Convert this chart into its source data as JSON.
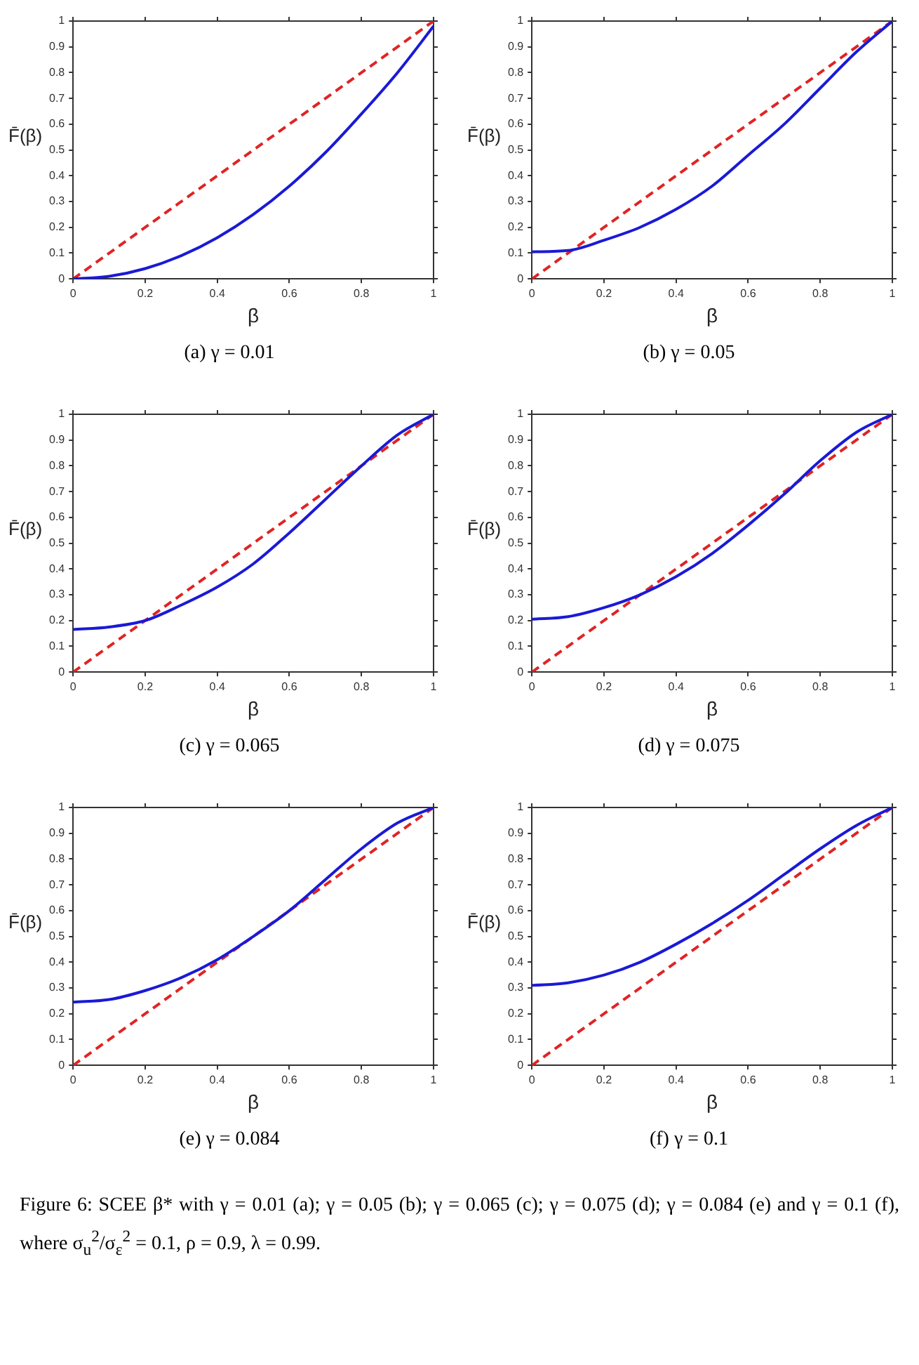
{
  "chart_data": [
    {
      "type": "line",
      "title": "(a) γ = 0.01",
      "xlabel": "β",
      "ylabel": "F̄(β)",
      "xlim": [
        0,
        1
      ],
      "ylim": [
        0,
        1
      ],
      "xticks": [
        0,
        0.2,
        0.4,
        0.6,
        0.8,
        1
      ],
      "yticks": [
        0,
        0.1,
        0.2,
        0.3,
        0.4,
        0.5,
        0.6,
        0.7,
        0.8,
        0.9,
        1
      ],
      "grid": false,
      "legend": false,
      "marker": "none",
      "series": [
        {
          "color": "#1a1ad6",
          "line_style": "solid",
          "x": [
            0,
            0.1,
            0.2,
            0.3,
            0.4,
            0.5,
            0.6,
            0.7,
            0.8,
            0.9,
            1
          ],
          "values": [
            0,
            0.01,
            0.04,
            0.09,
            0.16,
            0.25,
            0.36,
            0.49,
            0.64,
            0.8,
            0.98
          ]
        },
        {
          "color": "#e02424",
          "line_style": "dashed",
          "x": [
            0,
            1
          ],
          "values": [
            0,
            1
          ]
        }
      ]
    },
    {
      "type": "line",
      "title": "(b) γ = 0.05",
      "xlabel": "β",
      "ylabel": "F̄(β)",
      "xlim": [
        0,
        1
      ],
      "ylim": [
        0,
        1
      ],
      "xticks": [
        0,
        0.2,
        0.4,
        0.6,
        0.8,
        1
      ],
      "yticks": [
        0,
        0.1,
        0.2,
        0.3,
        0.4,
        0.5,
        0.6,
        0.7,
        0.8,
        0.9,
        1
      ],
      "grid": false,
      "legend": false,
      "marker": "none",
      "series": [
        {
          "color": "#1a1ad6",
          "line_style": "solid",
          "x": [
            0,
            0.1,
            0.2,
            0.3,
            0.4,
            0.5,
            0.6,
            0.7,
            0.8,
            0.9,
            1
          ],
          "values": [
            0.105,
            0.11,
            0.15,
            0.2,
            0.27,
            0.36,
            0.48,
            0.6,
            0.74,
            0.88,
            1
          ]
        },
        {
          "color": "#e02424",
          "line_style": "dashed",
          "x": [
            0,
            1
          ],
          "values": [
            0,
            1
          ]
        }
      ]
    },
    {
      "type": "line",
      "title": "(c) γ = 0.065",
      "xlabel": "β",
      "ylabel": "F̄(β)",
      "xlim": [
        0,
        1
      ],
      "ylim": [
        0,
        1
      ],
      "xticks": [
        0,
        0.2,
        0.4,
        0.6,
        0.8,
        1
      ],
      "yticks": [
        0,
        0.1,
        0.2,
        0.3,
        0.4,
        0.5,
        0.6,
        0.7,
        0.8,
        0.9,
        1
      ],
      "grid": false,
      "legend": false,
      "marker": "none",
      "series": [
        {
          "color": "#1a1ad6",
          "line_style": "solid",
          "x": [
            0,
            0.1,
            0.2,
            0.3,
            0.4,
            0.5,
            0.6,
            0.7,
            0.8,
            0.9,
            1
          ],
          "values": [
            0.165,
            0.175,
            0.2,
            0.26,
            0.33,
            0.42,
            0.54,
            0.67,
            0.8,
            0.92,
            1
          ]
        },
        {
          "color": "#e02424",
          "line_style": "dashed",
          "x": [
            0,
            1
          ],
          "values": [
            0,
            1
          ]
        }
      ]
    },
    {
      "type": "line",
      "title": "(d) γ = 0.075",
      "xlabel": "β",
      "ylabel": "F̄(β)",
      "xlim": [
        0,
        1
      ],
      "ylim": [
        0,
        1
      ],
      "xticks": [
        0,
        0.2,
        0.4,
        0.6,
        0.8,
        1
      ],
      "yticks": [
        0,
        0.1,
        0.2,
        0.3,
        0.4,
        0.5,
        0.6,
        0.7,
        0.8,
        0.9,
        1
      ],
      "grid": false,
      "legend": false,
      "marker": "none",
      "series": [
        {
          "color": "#1a1ad6",
          "line_style": "solid",
          "x": [
            0,
            0.1,
            0.2,
            0.3,
            0.4,
            0.5,
            0.6,
            0.7,
            0.8,
            0.9,
            1
          ],
          "values": [
            0.205,
            0.215,
            0.25,
            0.3,
            0.37,
            0.46,
            0.57,
            0.69,
            0.82,
            0.93,
            1
          ]
        },
        {
          "color": "#e02424",
          "line_style": "dashed",
          "x": [
            0,
            1
          ],
          "values": [
            0,
            1
          ]
        }
      ]
    },
    {
      "type": "line",
      "title": "(e) γ = 0.084",
      "xlabel": "β",
      "ylabel": "F̄(β)",
      "xlim": [
        0,
        1
      ],
      "ylim": [
        0,
        1
      ],
      "xticks": [
        0,
        0.2,
        0.4,
        0.6,
        0.8,
        1
      ],
      "yticks": [
        0,
        0.1,
        0.2,
        0.3,
        0.4,
        0.5,
        0.6,
        0.7,
        0.8,
        0.9,
        1
      ],
      "grid": false,
      "legend": false,
      "marker": "none",
      "series": [
        {
          "color": "#1a1ad6",
          "line_style": "solid",
          "x": [
            0,
            0.1,
            0.2,
            0.3,
            0.4,
            0.5,
            0.6,
            0.7,
            0.8,
            0.9,
            1
          ],
          "values": [
            0.245,
            0.255,
            0.29,
            0.34,
            0.41,
            0.5,
            0.6,
            0.72,
            0.84,
            0.94,
            1
          ]
        },
        {
          "color": "#e02424",
          "line_style": "dashed",
          "x": [
            0,
            1
          ],
          "values": [
            0,
            1
          ]
        }
      ]
    },
    {
      "type": "line",
      "title": "(f) γ = 0.1",
      "xlabel": "β",
      "ylabel": "F̄(β)",
      "xlim": [
        0,
        1
      ],
      "ylim": [
        0,
        1
      ],
      "xticks": [
        0,
        0.2,
        0.4,
        0.6,
        0.8,
        1
      ],
      "yticks": [
        0,
        0.1,
        0.2,
        0.3,
        0.4,
        0.5,
        0.6,
        0.7,
        0.8,
        0.9,
        1
      ],
      "grid": false,
      "legend": false,
      "marker": "none",
      "annotations": [
        "Figure 6: SCEE β* with γ = 0.01 (a); γ = 0.05 (b); γ = 0.065 (c); γ = 0.075 (d); γ = 0.084 (e) and γ = 0.1 (f), where σ$_{u}$$^{2}$/σ$_{ε}$$^{2}$ = 0.1, ρ = 0.9, λ = 0.99."
      ],
      "series": [
        {
          "color": "#1a1ad6",
          "line_style": "solid",
          "x": [
            0,
            0.1,
            0.2,
            0.3,
            0.4,
            0.5,
            0.6,
            0.7,
            0.8,
            0.9,
            1
          ],
          "values": [
            0.31,
            0.32,
            0.35,
            0.4,
            0.47,
            0.55,
            0.64,
            0.74,
            0.84,
            0.93,
            1
          ]
        },
        {
          "color": "#e02424",
          "line_style": "dashed",
          "x": [
            0,
            1
          ],
          "values": [
            0,
            1
          ]
        }
      ]
    }
  ]
}
